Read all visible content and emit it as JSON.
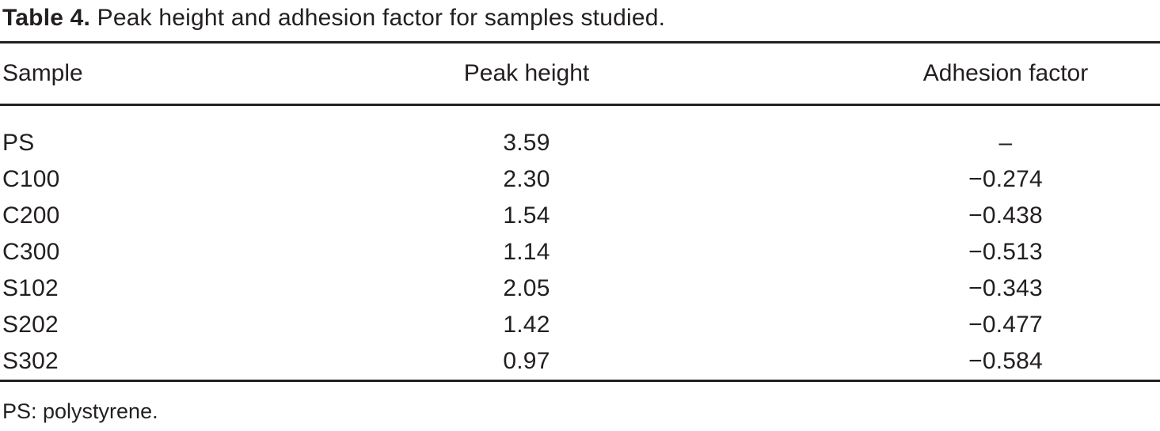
{
  "table": {
    "title_label": "Table 4.",
    "title_text": " Peak height and adhesion factor for samples studied.",
    "columns": [
      "Sample",
      "Peak height",
      "Adhesion factor"
    ],
    "rows": [
      {
        "sample": "PS",
        "peak_height": "3.59",
        "adhesion_factor": "–"
      },
      {
        "sample": "C100",
        "peak_height": "2.30",
        "adhesion_factor": "−0.274"
      },
      {
        "sample": "C200",
        "peak_height": "1.54",
        "adhesion_factor": "−0.438"
      },
      {
        "sample": "C300",
        "peak_height": "1.14",
        "adhesion_factor": "−0.513"
      },
      {
        "sample": "S102",
        "peak_height": "2.05",
        "adhesion_factor": "−0.343"
      },
      {
        "sample": "S202",
        "peak_height": "1.42",
        "adhesion_factor": "−0.477"
      },
      {
        "sample": "S302",
        "peak_height": "0.97",
        "adhesion_factor": "−0.584"
      }
    ],
    "footnote": "PS: polystyrene."
  },
  "colors": {
    "text": "#231f20",
    "rule": "#231f20",
    "background": "#ffffff"
  }
}
